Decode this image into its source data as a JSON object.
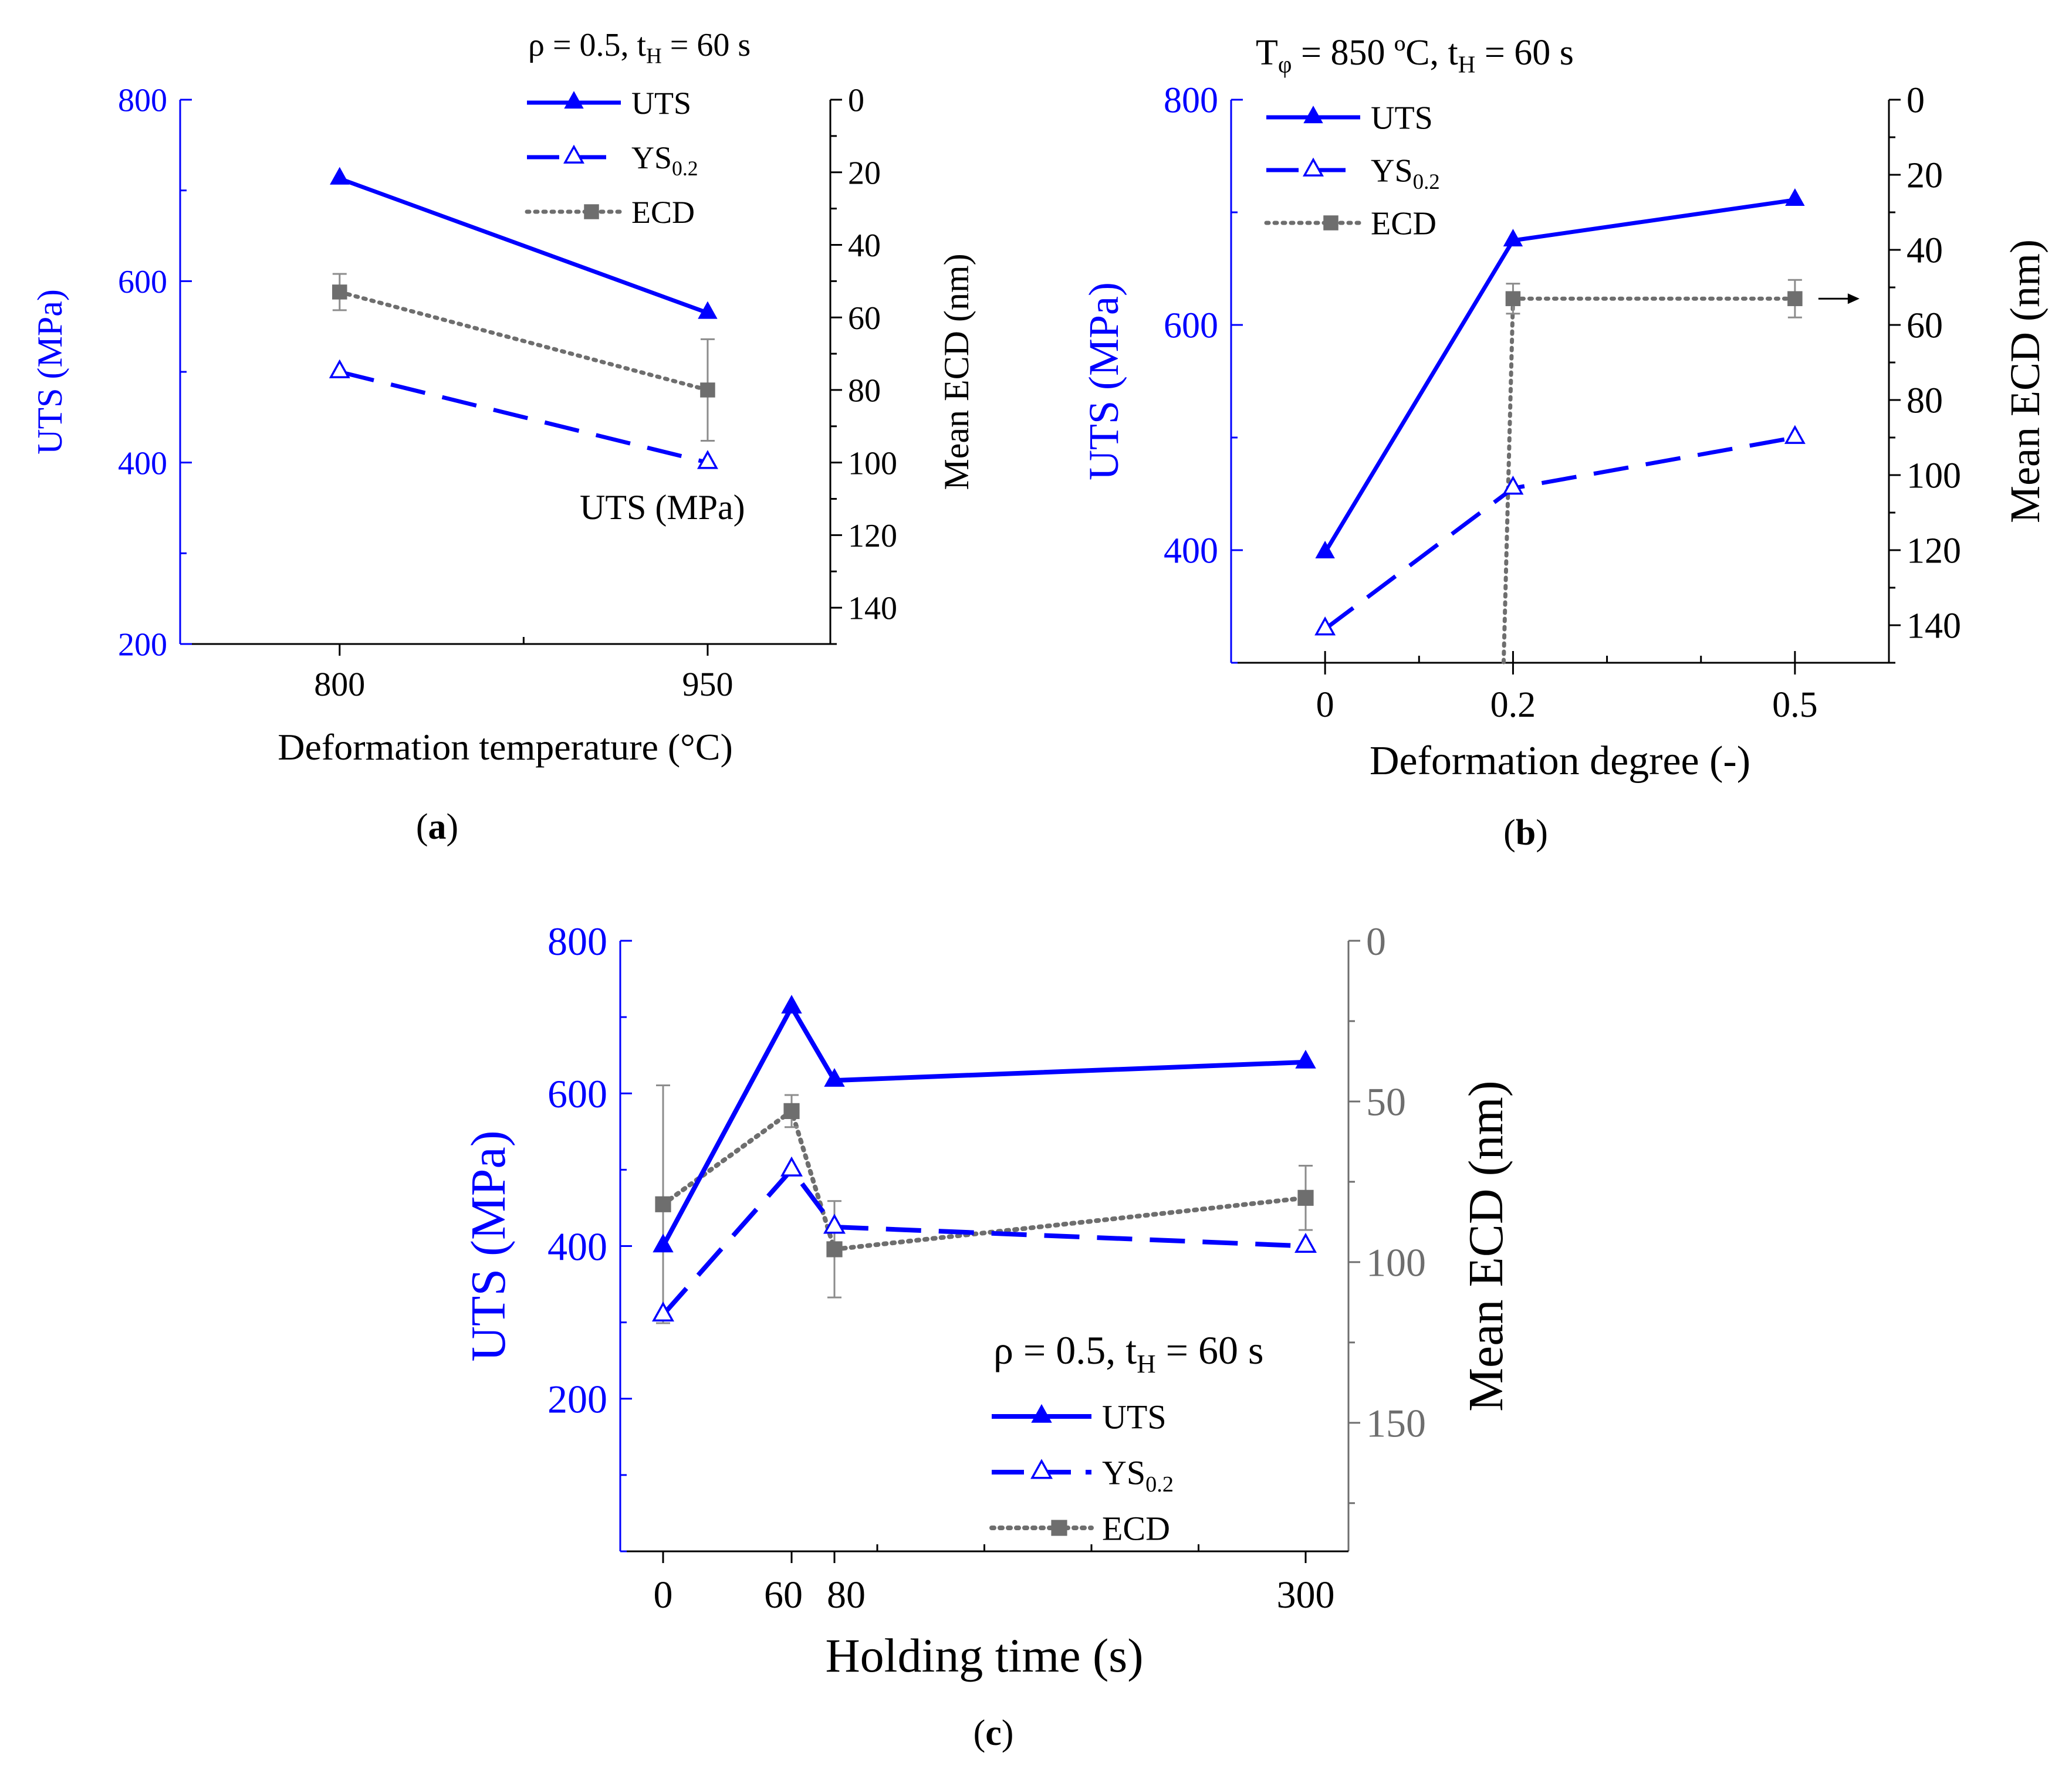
{
  "colors": {
    "uts": "#0000ff",
    "ys": "#0000ff",
    "ecd": "#6e6e6e",
    "axis_left": "#0000ff",
    "axis_c_right": "#6e6e6e"
  },
  "chart_data": [
    {
      "panel": "a",
      "caption_letter": "a",
      "type": "line",
      "annotation": {
        "head": "ρ = 0.5, t",
        "sub": "H",
        "tail": " = 60 s"
      },
      "xlabel": "Deformation temperature (°C)",
      "ylabel_left": "UTS (MPa)",
      "ylabel_right": "Mean ECD (nm)",
      "xlim": [
        735,
        1000
      ],
      "ylim_left": [
        200,
        800
      ],
      "ylim_right": [
        0,
        150
      ],
      "xticks": [
        800,
        950
      ],
      "xtick_labels": [
        "800",
        "950"
      ],
      "xminor": [
        875
      ],
      "yticks_left": [
        200,
        400,
        600,
        800
      ],
      "yticks_right": [
        0,
        20,
        40,
        60,
        80,
        100,
        120,
        140
      ],
      "extra_text": "UTS (MPa)",
      "legend": [
        "UTS",
        "YS0.2",
        "ECD"
      ],
      "series": [
        {
          "name": "UTS",
          "axis": "left",
          "x": [
            800,
            950
          ],
          "values": [
            713,
            565
          ]
        },
        {
          "name": "YS0.2",
          "axis": "left",
          "x": [
            800,
            950
          ],
          "values": [
            500,
            400
          ]
        },
        {
          "name": "ECD",
          "axis": "right",
          "x": [
            800,
            950
          ],
          "values": [
            53,
            80
          ],
          "err": [
            5,
            14
          ]
        }
      ]
    },
    {
      "panel": "b",
      "caption_letter": "b",
      "type": "line",
      "annotation": {
        "head": "T",
        "sub": "φ",
        "tail": " = 850 ºC, t",
        "sub2": "H",
        "tail2": " = 60 s"
      },
      "xlabel": "Deformation degree (-)",
      "ylabel_left": "UTS (MPa)",
      "ylabel_right": "Mean ECD (nm)",
      "xlim": [
        -0.1,
        0.6
      ],
      "ylim_left": [
        300,
        800
      ],
      "ylim_right": [
        0,
        150
      ],
      "xticks": [
        0,
        0.2,
        0.5
      ],
      "xtick_labels": [
        "0",
        "0.2",
        "0.5"
      ],
      "xminor": [
        0.1,
        0.3,
        0.4
      ],
      "yticks_left": [
        400,
        600,
        800
      ],
      "yticks_right": [
        0,
        20,
        40,
        60,
        80,
        100,
        120,
        140
      ],
      "legend": [
        "UTS",
        "YS0.2",
        "ECD"
      ],
      "series": [
        {
          "name": "UTS",
          "axis": "left",
          "x": [
            0,
            0.2,
            0.5
          ],
          "values": [
            398,
            675,
            711
          ]
        },
        {
          "name": "YS0.2",
          "axis": "left",
          "x": [
            0,
            0.2,
            0.5
          ],
          "values": [
            330,
            455,
            500
          ]
        },
        {
          "name": "ECD",
          "axis": "right",
          "x": [
            0.2,
            0.5
          ],
          "values": [
            53,
            53
          ],
          "err": [
            4,
            5
          ],
          "drop_to_x": 0.19
        }
      ]
    },
    {
      "panel": "c",
      "caption_letter": "c",
      "type": "line",
      "annotation": {
        "head": "ρ = 0.5, t",
        "sub": "H",
        "tail": " = 60 s"
      },
      "xlabel": "Holding time (s)",
      "ylabel_left": "UTS (MPa)",
      "ylabel_right": "Mean ECD (nm)",
      "xlim": [
        -20,
        320
      ],
      "ylim_left": [
        0,
        800
      ],
      "ylim_right": [
        0,
        190
      ],
      "xticks": [
        0,
        60,
        80,
        300
      ],
      "xtick_labels": [
        "0",
        "60",
        "80",
        "300"
      ],
      "xminor": [
        100,
        150,
        200,
        250
      ],
      "yticks_left": [
        200,
        400,
        600,
        800
      ],
      "yticks_right": [
        0,
        50,
        100,
        150
      ],
      "legend": [
        "UTS",
        "YS0.2",
        "ECD"
      ],
      "series": [
        {
          "name": "UTS",
          "axis": "left",
          "x": [
            0,
            60,
            80,
            300
          ],
          "values": [
            400,
            713,
            617,
            641
          ]
        },
        {
          "name": "YS0.2",
          "axis": "left",
          "x": [
            0,
            60,
            80,
            300
          ],
          "values": [
            310,
            500,
            425,
            400
          ]
        },
        {
          "name": "ECD",
          "axis": "right",
          "x": [
            0,
            60,
            80,
            300
          ],
          "values": [
            82,
            53,
            96,
            80
          ],
          "err": [
            37,
            5,
            15,
            10
          ]
        }
      ]
    }
  ]
}
